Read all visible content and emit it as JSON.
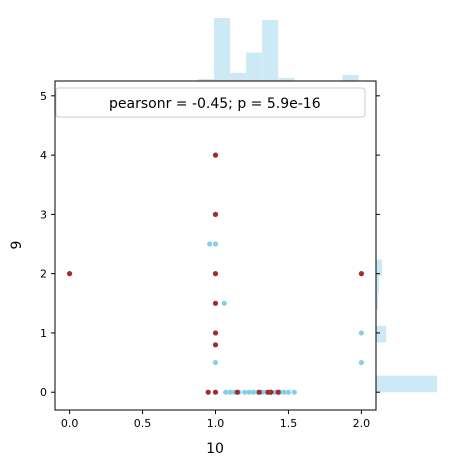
{
  "chart_data": {
    "type": "scatter",
    "xlabel": "10",
    "ylabel": "9",
    "xlim": [
      -0.1,
      2.1
    ],
    "ylim": [
      -0.3,
      5.25
    ],
    "x_ticks": [
      0.0,
      0.5,
      1.0,
      1.5,
      2.0
    ],
    "y_ticks": [
      0,
      1,
      2,
      3,
      4,
      5
    ],
    "x_tick_labels": [
      "0.0",
      "0.5",
      "1.0",
      "1.5",
      "2.0"
    ],
    "y_tick_labels": [
      "0",
      "1",
      "2",
      "3",
      "4",
      "5"
    ],
    "annotation": "pearsonr = -0.45; p = 5.9e-16",
    "legend_location": "top",
    "colors": {
      "series_a": "#87ceeb",
      "series_b": "#a52a2a",
      "hist": "#cde9f5"
    },
    "series": [
      {
        "color": "#87ceeb",
        "points": [
          [
            0.96,
            2.5
          ],
          [
            1.0,
            2.5
          ],
          [
            1.06,
            1.5
          ],
          [
            1.0,
            0.5
          ],
          [
            2.0,
            1.0
          ],
          [
            2.0,
            0.5
          ],
          [
            1.07,
            0.0
          ],
          [
            1.1,
            0.0
          ],
          [
            1.13,
            0.0
          ],
          [
            1.16,
            0.0
          ],
          [
            1.2,
            0.0
          ],
          [
            1.23,
            0.0
          ],
          [
            1.26,
            0.0
          ],
          [
            1.29,
            0.0
          ],
          [
            1.32,
            0.0
          ],
          [
            1.35,
            0.0
          ],
          [
            1.38,
            0.0
          ],
          [
            1.41,
            0.0
          ],
          [
            1.44,
            0.0
          ],
          [
            1.47,
            0.0
          ],
          [
            1.5,
            0.0
          ],
          [
            1.54,
            0.0
          ]
        ]
      },
      {
        "color": "#a52a2a",
        "points": [
          [
            0.0,
            2.0
          ],
          [
            1.0,
            4.0
          ],
          [
            1.0,
            3.0
          ],
          [
            1.0,
            2.0
          ],
          [
            1.0,
            1.5
          ],
          [
            1.0,
            1.0
          ],
          [
            1.0,
            0.8
          ],
          [
            1.0,
            0.0
          ],
          [
            0.95,
            0.0
          ],
          [
            1.15,
            0.0
          ],
          [
            1.3,
            0.0
          ],
          [
            1.36,
            0.0
          ],
          [
            1.38,
            0.0
          ],
          [
            1.43,
            0.0
          ],
          [
            2.0,
            2.0
          ]
        ]
      }
    ],
    "x_histogram": {
      "bin_edges": [
        0.0,
        0.11,
        0.22,
        0.33,
        0.44,
        0.55,
        0.66,
        0.77,
        0.88,
        0.99,
        1.1,
        1.21,
        1.32,
        1.43,
        1.54,
        1.65,
        1.76,
        1.87,
        1.98,
        2.09
      ],
      "counts": [
        0,
        0,
        0,
        0,
        0,
        0,
        0,
        0,
        2,
        62,
        8,
        28,
        60,
        3,
        0,
        0,
        0,
        6,
        0
      ]
    },
    "y_histogram": {
      "bin_edges": [
        0.0,
        0.28,
        0.56,
        0.84,
        1.12,
        1.4,
        1.68,
        1.96,
        2.24
      ],
      "counts": [
        60,
        0,
        0,
        10,
        0,
        2,
        3,
        6
      ]
    }
  }
}
